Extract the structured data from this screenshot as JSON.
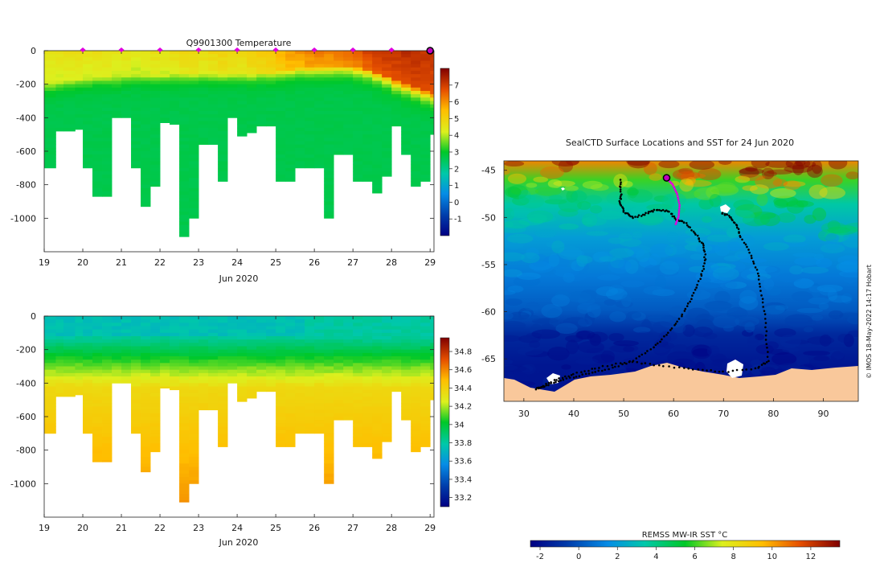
{
  "chart_data": [
    {
      "type": "heatmap",
      "title": "Q9901300  Temperature",
      "xlabel": "Jun 2020",
      "ylabel": "",
      "x_ticks": [
        "19",
        "20",
        "21",
        "22",
        "23",
        "24",
        "25",
        "26",
        "27",
        "28",
        "29"
      ],
      "xlim": [
        19,
        29.1
      ],
      "y_ticks": [
        0,
        -200,
        -400,
        -600,
        -800,
        -1000
      ],
      "ylim": [
        -1200,
        0
      ],
      "profile_markers_day": [
        20,
        21,
        22,
        23,
        24,
        25,
        26,
        27,
        28
      ],
      "current_position_day": 29,
      "colorbar": {
        "ticks": [
          7,
          6,
          5,
          4,
          3,
          2,
          1,
          0,
          -1
        ],
        "min": -2,
        "max": 8
      },
      "profiles": {
        "time": [
          19.0,
          19.3,
          19.5,
          19.8,
          20.0,
          20.25,
          20.5,
          20.75,
          21.0,
          21.25,
          21.5,
          21.75,
          22.0,
          22.25,
          22.5,
          22.75,
          23.0,
          23.25,
          23.5,
          23.75,
          24.0,
          24.25,
          24.5,
          24.75,
          25.0,
          25.25,
          25.5,
          25.75,
          26.0,
          26.25,
          26.5,
          26.75,
          27.0,
          27.25,
          27.5,
          27.75,
          28.0,
          28.25,
          28.5,
          28.75,
          29.0
        ],
        "max_depth": [
          700,
          480,
          480,
          470,
          700,
          870,
          870,
          400,
          400,
          700,
          930,
          810,
          430,
          440,
          1110,
          1000,
          560,
          560,
          780,
          400,
          510,
          490,
          450,
          450,
          780,
          780,
          700,
          700,
          700,
          1000,
          620,
          620,
          780,
          780,
          850,
          750,
          450,
          620,
          810,
          780,
          500
        ],
        "surface_temp": [
          4.6,
          4.6,
          4.7,
          4.7,
          4.6,
          4.7,
          4.7,
          4.6,
          4.6,
          4.5,
          4.6,
          4.7,
          4.6,
          4.8,
          4.9,
          4.9,
          4.8,
          4.9,
          5.0,
          4.9,
          4.9,
          5.1,
          5.2,
          5.3,
          5.6,
          5.9,
          6.0,
          6.2,
          6.3,
          6.2,
          6.4,
          6.5,
          6.6,
          6.9,
          7.1,
          7.2,
          7.2,
          7.3,
          7.3,
          7.2,
          7.2
        ],
        "thermocline_depth": [
          200,
          190,
          180,
          170,
          170,
          160,
          160,
          160,
          150,
          150,
          150,
          150,
          150,
          140,
          140,
          140,
          140,
          140,
          140,
          140,
          140,
          140,
          130,
          130,
          120,
          110,
          100,
          100,
          95,
          95,
          90,
          90,
          100,
          110,
          130,
          150,
          180,
          200,
          220,
          240,
          260
        ]
      }
    },
    {
      "type": "heatmap",
      "title": "",
      "xlabel": "Jun 2020",
      "ylabel": "",
      "x_ticks": [
        "19",
        "20",
        "21",
        "22",
        "23",
        "24",
        "25",
        "26",
        "27",
        "28",
        "29"
      ],
      "xlim": [
        19,
        29.1
      ],
      "y_ticks": [
        0,
        -200,
        -400,
        -600,
        -800,
        -1000
      ],
      "ylim": [
        -1200,
        0
      ],
      "colorbar": {
        "ticks": [
          34.8,
          34.6,
          34.4,
          34.2,
          34,
          33.8,
          33.6,
          33.4,
          33.2
        ],
        "min": 33.1,
        "max": 34.95
      }
    },
    {
      "type": "heatmap",
      "title": "SealCTD Surface Locations and SST for 24 Jun 2020",
      "xlabel": "",
      "ylabel": "",
      "x_ticks": [
        30,
        40,
        50,
        60,
        70,
        80,
        90
      ],
      "xlim": [
        26,
        97
      ],
      "y_ticks": [
        -45,
        -50,
        -55,
        -60,
        -65
      ],
      "ylim": [
        -69.5,
        -44
      ],
      "track": [
        [
          49.3,
          -46
        ],
        [
          49.5,
          -47.5
        ],
        [
          49.2,
          -48.5
        ],
        [
          50.2,
          -49.5
        ],
        [
          52,
          -50
        ],
        [
          54.5,
          -49.6
        ],
        [
          56.5,
          -49.2
        ],
        [
          59,
          -49.3
        ],
        [
          60.5,
          -50.2
        ],
        [
          62.5,
          -50.6
        ],
        [
          64.5,
          -51.8
        ],
        [
          66,
          -53
        ],
        [
          66.4,
          -54.6
        ],
        [
          65.3,
          -56.5
        ],
        [
          63.5,
          -58.6
        ],
        [
          61.5,
          -60.5
        ],
        [
          59,
          -62.2
        ],
        [
          56,
          -63.8
        ],
        [
          51.8,
          -65.2
        ],
        [
          47,
          -66.1
        ],
        [
          42.5,
          -66.6
        ],
        [
          38,
          -67.2
        ],
        [
          34.5,
          -67.8
        ],
        [
          32.5,
          -68.2
        ],
        [
          36,
          -67.3
        ],
        [
          40,
          -66.6
        ],
        [
          45,
          -65.9
        ],
        [
          51,
          -65.3
        ],
        [
          57,
          -65.7
        ],
        [
          64,
          -66.1
        ],
        [
          70,
          -66.4
        ],
        [
          76.5,
          -66
        ],
        [
          79,
          -65.2
        ],
        [
          78.5,
          -62
        ],
        [
          78,
          -59
        ],
        [
          77,
          -56.2
        ],
        [
          75.5,
          -54
        ],
        [
          73.5,
          -52.1
        ],
        [
          72.5,
          -50.7
        ],
        [
          71,
          -49.8
        ],
        [
          69.5,
          -49.5
        ]
      ],
      "recent_track": [
        [
          58.7,
          -45.9
        ],
        [
          59.8,
          -46.5
        ],
        [
          60.7,
          -47.5
        ],
        [
          61.2,
          -48.7
        ],
        [
          61,
          -49.9
        ],
        [
          60.3,
          -50.9
        ]
      ],
      "current_position": [
        58.6,
        -45.8
      ],
      "sst_colorbar": {
        "label": "REMSS MW-IR SST °C",
        "ticks": [
          -2,
          0,
          2,
          4,
          6,
          8,
          10,
          12
        ],
        "min": -2.5,
        "max": 13.5
      },
      "attribution": "© IMOS 18-May-2022 14:17 Hobart"
    }
  ]
}
